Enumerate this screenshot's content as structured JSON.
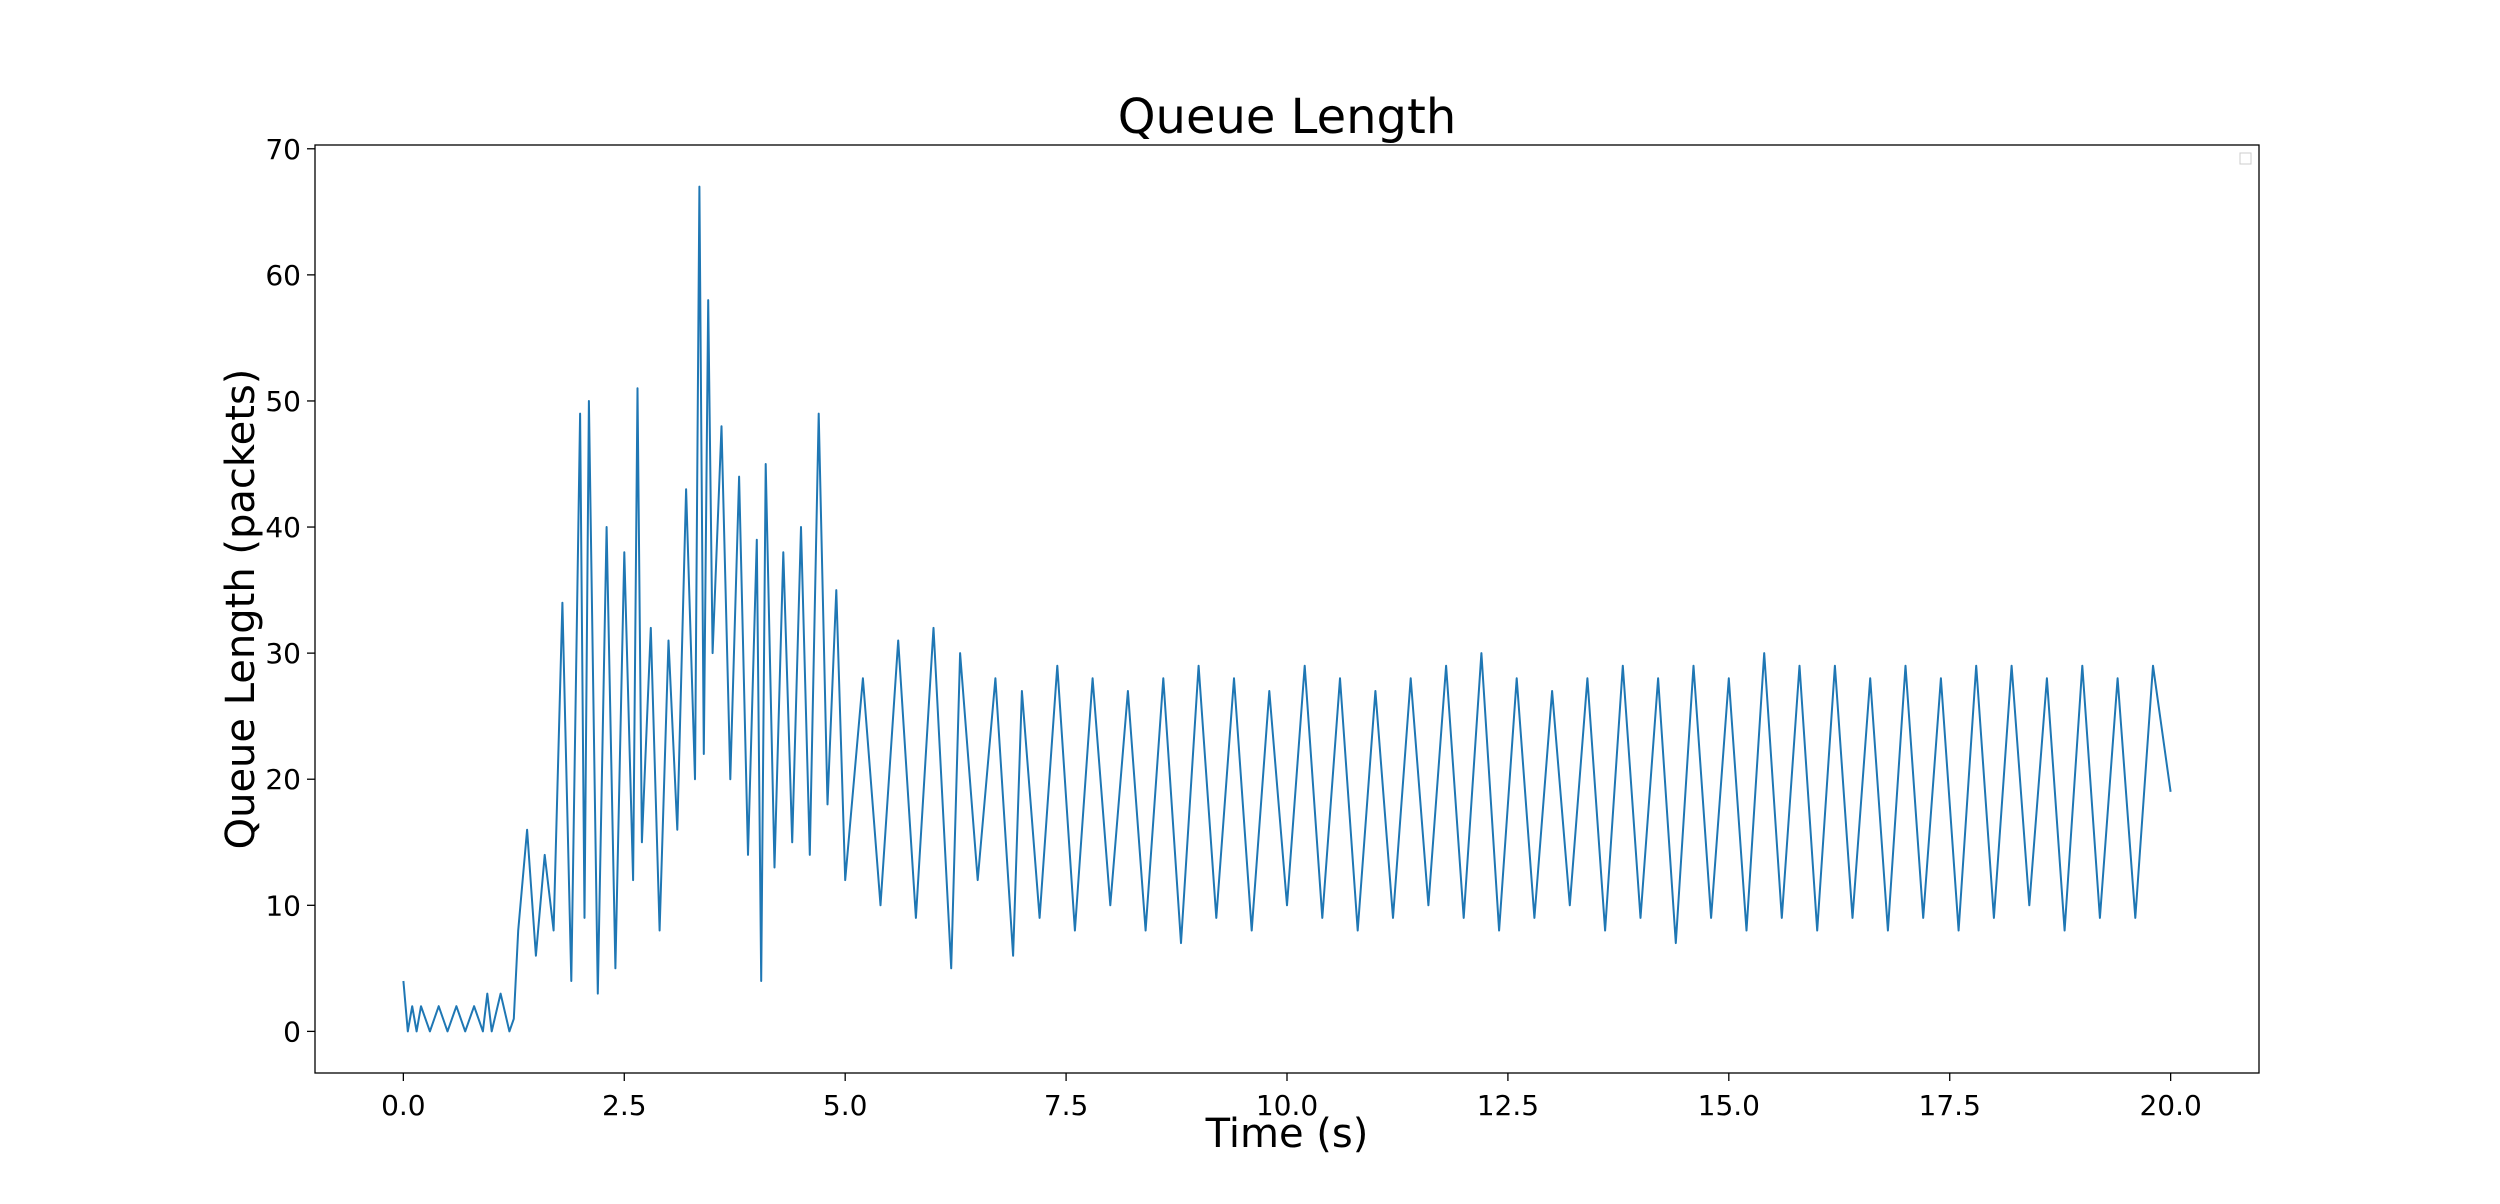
{
  "chart_data": {
    "type": "line",
    "title": "Queue Length",
    "xlabel": "Time (s)",
    "ylabel": "Queue Length (packets)",
    "xlim": [
      -1.0,
      21.0
    ],
    "ylim": [
      -3.3,
      70.3
    ],
    "x_ticks": [
      "0.0",
      "2.5",
      "5.0",
      "7.5",
      "10.0",
      "12.5",
      "15.0",
      "17.5",
      "20.0"
    ],
    "y_ticks": [
      "0",
      "10",
      "20",
      "30",
      "40",
      "50",
      "60",
      "70"
    ],
    "grid": false,
    "legend": "top-right (empty)",
    "series_color": "#1f77b4",
    "series": [
      {
        "x": [
          0.0,
          0.05,
          0.1,
          0.15,
          0.2,
          0.3,
          0.4,
          0.5,
          0.6,
          0.7,
          0.8,
          0.9,
          0.95,
          1.0,
          1.1,
          1.2,
          1.25,
          1.3,
          1.4,
          1.5,
          1.6,
          1.7,
          1.8,
          1.9,
          2.0,
          2.05,
          2.1,
          2.2,
          2.3,
          2.4,
          2.5,
          2.6,
          2.65,
          2.7,
          2.8,
          2.9,
          3.0,
          3.1,
          3.2,
          3.3,
          3.35,
          3.4,
          3.45,
          3.5,
          3.6,
          3.7,
          3.8,
          3.9,
          4.0,
          4.05,
          4.1,
          4.2,
          4.3,
          4.4,
          4.5,
          4.6,
          4.7,
          4.8,
          4.9,
          5.0,
          5.2,
          5.4,
          5.6,
          5.8,
          6.0,
          6.2,
          6.3,
          6.5,
          6.7,
          6.9,
          7.0,
          7.2,
          7.4,
          7.6,
          7.8,
          8.0,
          8.2,
          8.4,
          8.6,
          8.8,
          9.0,
          9.2,
          9.4,
          9.6,
          9.8,
          10.0,
          10.2,
          10.4,
          10.6,
          10.8,
          11.0,
          11.2,
          11.4,
          11.6,
          11.8,
          12.0,
          12.2,
          12.4,
          12.6,
          12.8,
          13.0,
          13.2,
          13.4,
          13.6,
          13.8,
          14.0,
          14.2,
          14.4,
          14.6,
          14.8,
          15.0,
          15.2,
          15.4,
          15.6,
          15.8,
          16.0,
          16.2,
          16.4,
          16.6,
          16.8,
          17.0,
          17.2,
          17.4,
          17.6,
          17.8,
          18.0,
          18.2,
          18.4,
          18.6,
          18.8,
          19.0,
          19.2,
          19.4,
          19.6,
          19.8,
          20.0
        ],
        "y": [
          4,
          0,
          2,
          0,
          2,
          0,
          2,
          0,
          2,
          0,
          2,
          0,
          3,
          0,
          3,
          0,
          1,
          8,
          16,
          6,
          14,
          8,
          34,
          4,
          49,
          9,
          50,
          3,
          40,
          5,
          38,
          12,
          51,
          15,
          32,
          8,
          31,
          16,
          43,
          20,
          67,
          22,
          58,
          30,
          48,
          20,
          44,
          14,
          39,
          4,
          45,
          13,
          38,
          15,
          40,
          14,
          49,
          18,
          35,
          12,
          28,
          10,
          31,
          9,
          32,
          5,
          30,
          12,
          28,
          6,
          27,
          9,
          29,
          8,
          28,
          10,
          27,
          8,
          28,
          7,
          29,
          9,
          28,
          8,
          27,
          10,
          29,
          9,
          28,
          8,
          27,
          9,
          28,
          10,
          29,
          9,
          30,
          8,
          28,
          9,
          27,
          10,
          28,
          8,
          29,
          9,
          28,
          7,
          29,
          9,
          28,
          8,
          30,
          9,
          29,
          8,
          29,
          9,
          28,
          8,
          29,
          9,
          28,
          8,
          29,
          9,
          29,
          10,
          28,
          8,
          29,
          9,
          28,
          9,
          29,
          19
        ]
      }
    ]
  }
}
